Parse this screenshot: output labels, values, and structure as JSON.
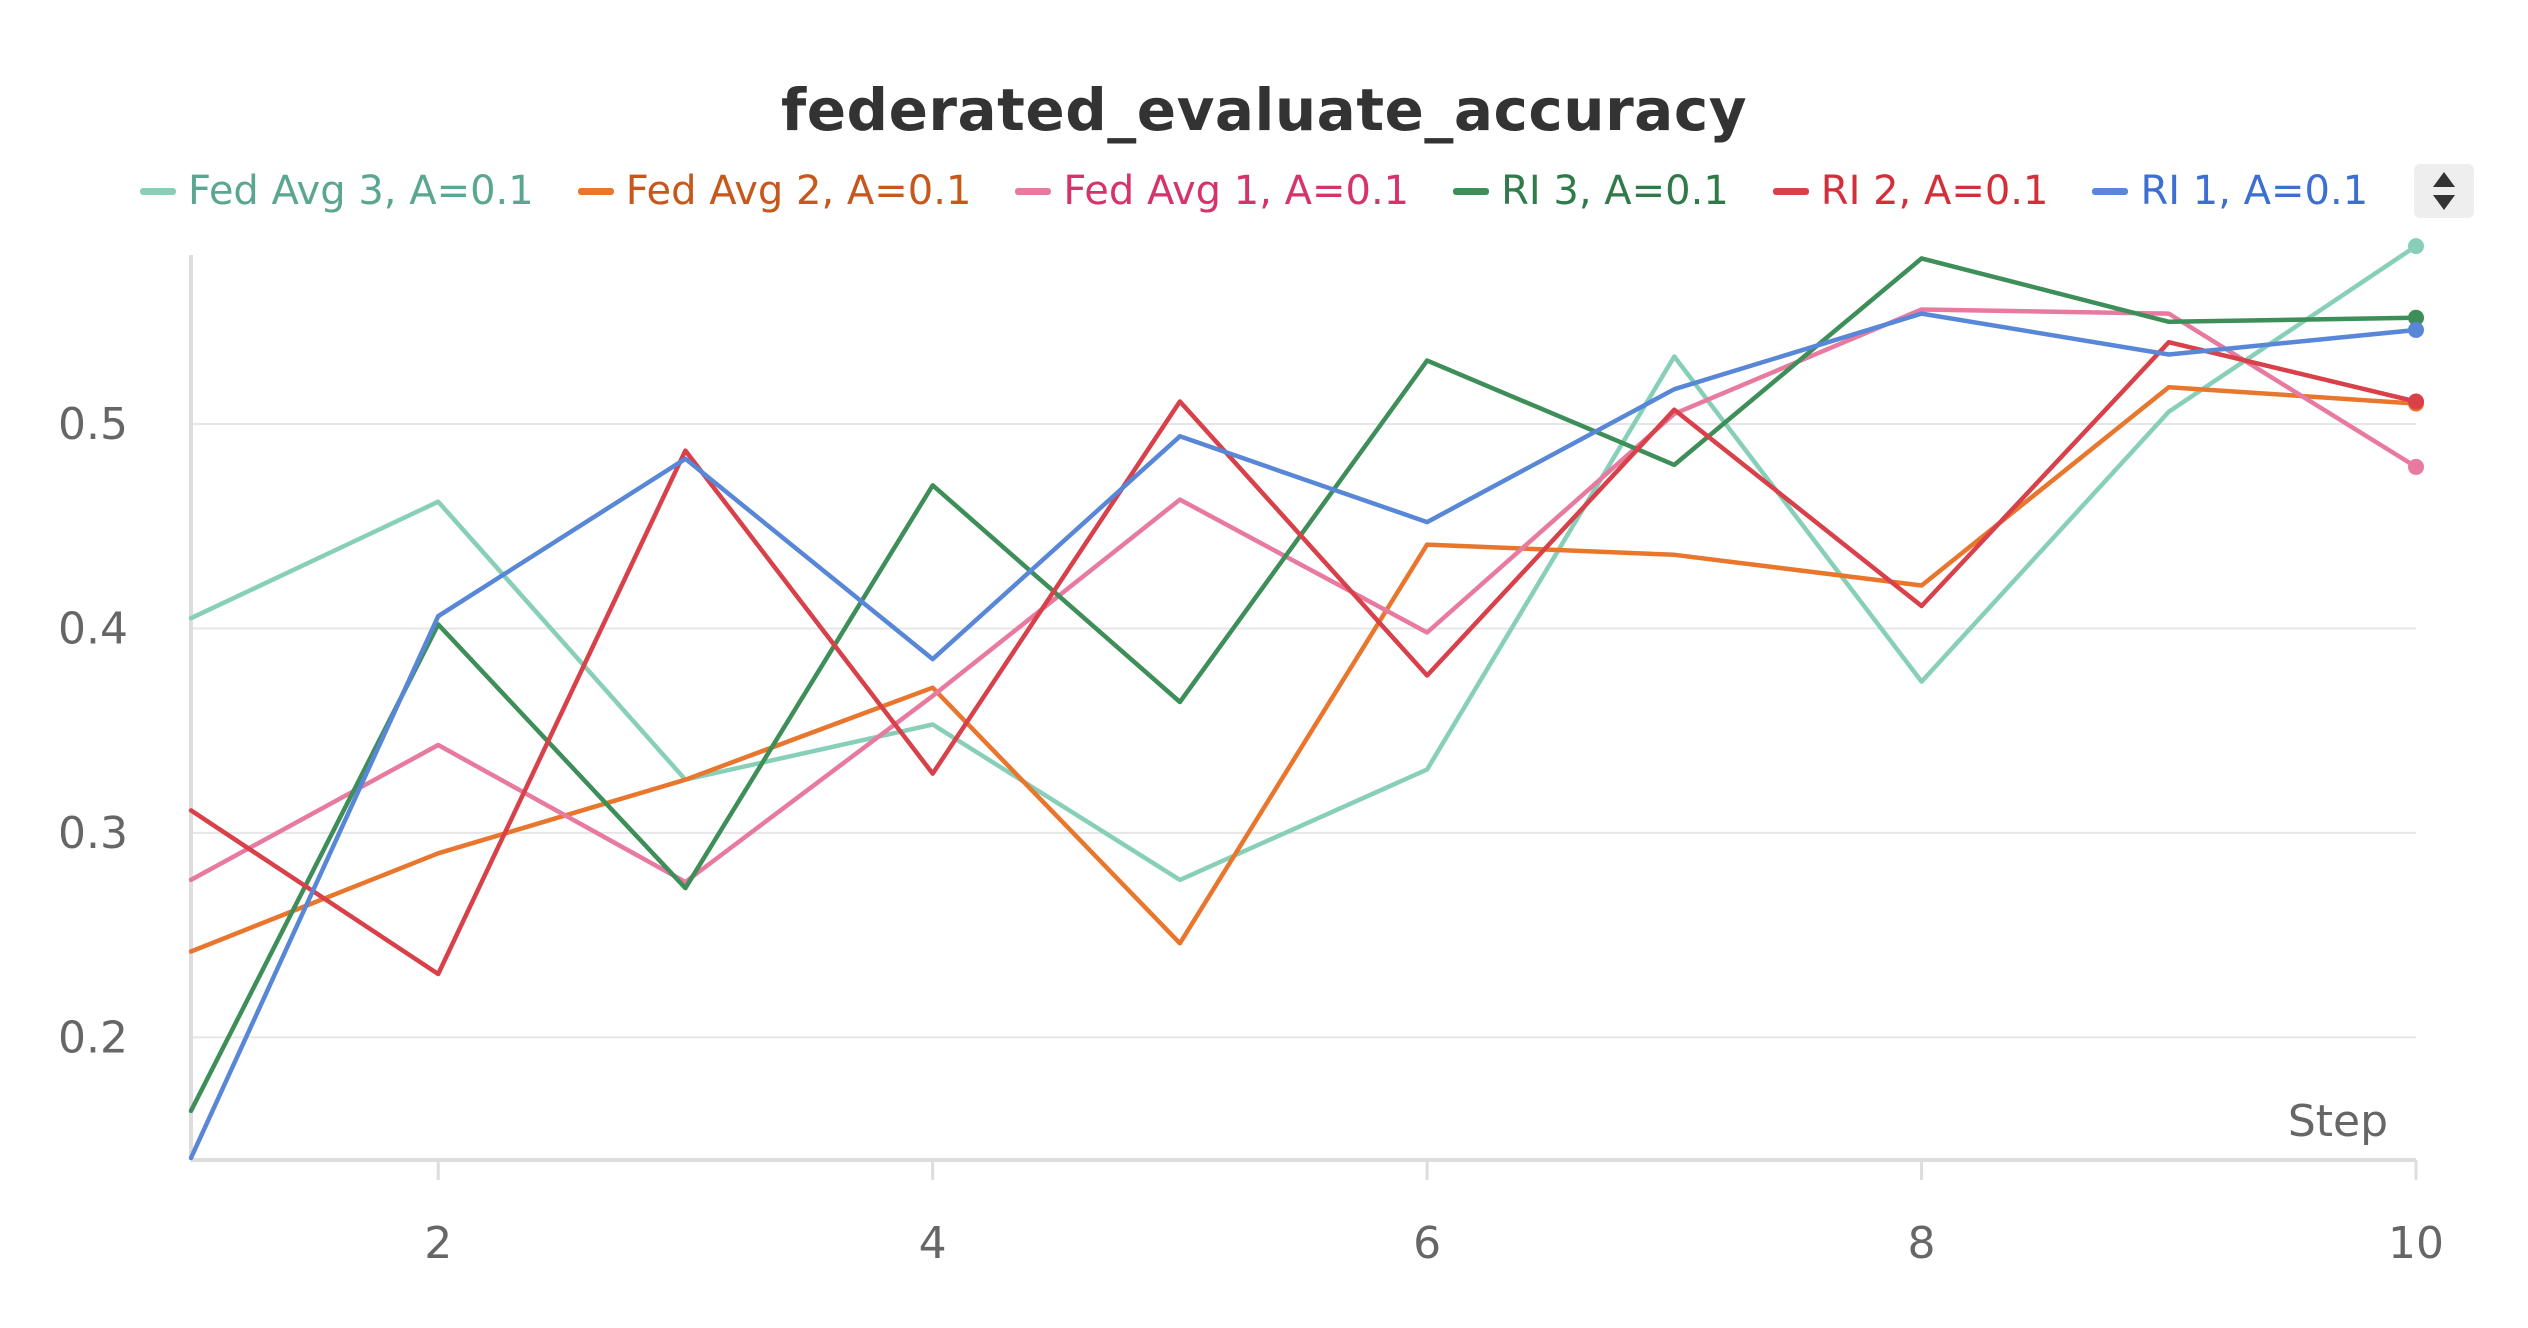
{
  "chart_data": {
    "type": "line",
    "title": "federated_evaluate_accuracy",
    "xlabel": "Step",
    "ylabel": "",
    "xlim": [
      1,
      10
    ],
    "ylim": [
      0.14,
      0.59
    ],
    "x_ticks": [
      2,
      4,
      6,
      8,
      10
    ],
    "y_ticks": [
      0.2,
      0.3,
      0.4,
      0.5
    ],
    "grid": "horizontal",
    "legend_position": "top",
    "x": [
      1,
      2,
      3,
      4,
      5,
      6,
      7,
      8,
      9,
      10
    ],
    "series": [
      {
        "name": "Fed Avg 3, A=0.1",
        "color": "#87cfb9",
        "values": [
          0.405,
          0.462,
          0.326,
          0.353,
          0.277,
          0.331,
          0.533,
          0.374,
          0.506,
          0.587
        ]
      },
      {
        "name": "Fed Avg 2, A=0.1",
        "color": "#e8762d",
        "values": [
          0.242,
          0.29,
          0.326,
          0.371,
          0.246,
          0.441,
          0.436,
          0.421,
          0.518,
          0.51
        ]
      },
      {
        "name": "Fed Avg 1, A=0.1",
        "color": "#e87aa0",
        "values": [
          0.277,
          0.343,
          0.276,
          0.367,
          0.463,
          0.398,
          0.505,
          0.556,
          0.554,
          0.479
        ]
      },
      {
        "name": "RI 3, A=0.1",
        "color": "#3d8e58",
        "values": [
          0.164,
          0.402,
          0.273,
          0.47,
          0.364,
          0.531,
          0.48,
          0.581,
          0.55,
          0.552
        ]
      },
      {
        "name": "RI 2, A=0.1",
        "color": "#d8404a",
        "values": [
          0.311,
          0.231,
          0.487,
          0.329,
          0.511,
          0.377,
          0.507,
          0.411,
          0.54,
          0.511
        ]
      },
      {
        "name": "RI 1, A=0.1",
        "color": "#5887d8",
        "values": [
          0.141,
          0.406,
          0.483,
          0.385,
          0.494,
          0.452,
          0.517,
          0.554,
          0.534,
          0.546
        ]
      }
    ]
  },
  "legend_text_colors": [
    "#5aa690",
    "#c7571b",
    "#d6336c",
    "#2f7a48",
    "#d32f3b",
    "#3c6fcf"
  ],
  "scroll_icon": "sort-up-down-icon"
}
